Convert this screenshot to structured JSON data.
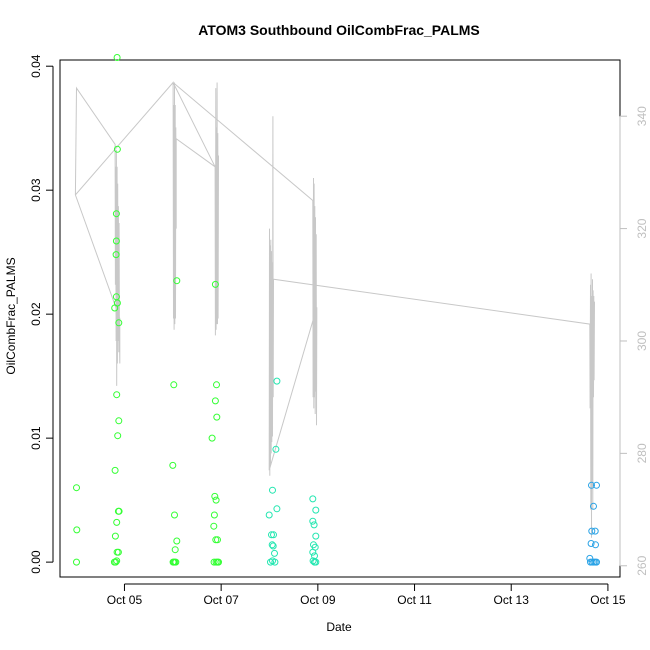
{
  "chart_data": {
    "type": "scatter",
    "title": "ATOM3 Southbound OilCombFrac_PALMS",
    "xlabel": "Date",
    "ylabel": "OilCombFrac_PALMS",
    "xlim": [
      "2016-10-03T16:00",
      "2016-10-15T06:00"
    ],
    "ylim": [
      -0.0012,
      0.0405
    ],
    "ylim_right": [
      258,
      350
    ],
    "x_ticks": [
      "Oct 05",
      "Oct 07",
      "Oct 09",
      "Oct 11",
      "Oct 13",
      "Oct 15"
    ],
    "x_tick_dates": [
      "2016-10-05",
      "2016-10-07",
      "2016-10-09",
      "2016-10-11",
      "2016-10-13",
      "2016-10-15"
    ],
    "y_ticks": [
      "0.00",
      "0.01",
      "0.02",
      "0.03",
      "0.04"
    ],
    "y_tick_values": [
      0.0,
      0.01,
      0.02,
      0.03,
      0.04
    ],
    "y_ticks_right": [
      "260",
      "280",
      "300",
      "320",
      "340"
    ],
    "y_tick_values_right": [
      260,
      280,
      300,
      320,
      340
    ],
    "grid": false,
    "legend": "none",
    "colors": {
      "green": "#33ff33",
      "teal": "#22e6b0",
      "blue": "#2aa3e6",
      "line": "#c8c8c8",
      "right_axis": "#bfbfbf"
    },
    "series": [
      {
        "marker": "open-circle",
        "color": "#33ff33",
        "points": [
          [
            "2016-10-04T00:10",
            0.006
          ],
          [
            "2016-10-04T00:20",
            0.0026
          ],
          [
            "2016-10-04T00:10",
            0.0
          ],
          [
            "2016-10-04T19:10",
            0.0205
          ],
          [
            "2016-10-04T19:20",
            0.0074
          ],
          [
            "2016-10-04T19:30",
            0.0021
          ],
          [
            "2016-10-04T19:00",
            0.0
          ],
          [
            "2016-10-04T19:40",
            0.0
          ],
          [
            "2016-10-04T20:20",
            0.0407
          ],
          [
            "2016-10-04T20:30",
            0.0333
          ],
          [
            "2016-10-04T20:00",
            0.0281
          ],
          [
            "2016-10-04T20:00",
            0.0259
          ],
          [
            "2016-10-04T19:50",
            0.0248
          ],
          [
            "2016-10-04T20:00",
            0.0214
          ],
          [
            "2016-10-04T20:30",
            0.0209
          ],
          [
            "2016-10-04T21:10",
            0.0193
          ],
          [
            "2016-10-04T20:10",
            0.0135
          ],
          [
            "2016-10-04T21:10",
            0.0114
          ],
          [
            "2016-10-04T20:40",
            0.0102
          ],
          [
            "2016-10-04T20:10",
            0.0032
          ],
          [
            "2016-10-04T21:00",
            0.0041
          ],
          [
            "2016-10-04T21:20",
            0.0041
          ],
          [
            "2016-10-04T20:20",
            0.0008
          ],
          [
            "2016-10-04T21:00",
            0.0008
          ],
          [
            "2016-10-04T20:10",
            0.0001
          ],
          [
            "2016-10-06T00:30",
            0.0143
          ],
          [
            "2016-10-06T00:00",
            0.0078
          ],
          [
            "2016-10-06T00:50",
            0.0038
          ],
          [
            "2016-10-06T02:00",
            0.0017
          ],
          [
            "2016-10-06T01:10",
            0.001
          ],
          [
            "2016-10-06T00:10",
            0.0
          ],
          [
            "2016-10-06T00:30",
            0.0
          ],
          [
            "2016-10-06T01:00",
            0.0
          ],
          [
            "2016-10-06T01:30",
            0.0
          ],
          [
            "2016-10-06T02:00",
            0.0227
          ],
          [
            "2016-10-06T21:10",
            0.0224
          ],
          [
            "2016-10-06T21:40",
            0.0143
          ],
          [
            "2016-10-06T21:10",
            0.013
          ],
          [
            "2016-10-06T21:50",
            0.0117
          ],
          [
            "2016-10-06T19:30",
            0.01
          ],
          [
            "2016-10-06T20:50",
            0.0053
          ],
          [
            "2016-10-06T21:30",
            0.005
          ],
          [
            "2016-10-06T20:40",
            0.0038
          ],
          [
            "2016-10-06T20:20",
            0.0029
          ],
          [
            "2016-10-06T21:20",
            0.0018
          ],
          [
            "2016-10-06T22:10",
            0.0018
          ],
          [
            "2016-10-06T20:30",
            0.0
          ],
          [
            "2016-10-06T21:30",
            0.0
          ],
          [
            "2016-10-06T22:10",
            0.0
          ],
          [
            "2016-10-06T22:40",
            0.0
          ]
        ]
      },
      {
        "marker": "open-circle",
        "color": "#22e6b0",
        "points": [
          [
            "2016-10-08T03:40",
            0.0146
          ],
          [
            "2016-10-08T03:10",
            0.0091
          ],
          [
            "2016-10-08T01:30",
            0.0058
          ],
          [
            "2016-10-08T03:40",
            0.0043
          ],
          [
            "2016-10-07T23:50",
            0.0038
          ],
          [
            "2016-10-08T01:00",
            0.0022
          ],
          [
            "2016-10-08T02:00",
            0.0022
          ],
          [
            "2016-10-08T01:20",
            0.0014
          ],
          [
            "2016-10-08T01:50",
            0.0013
          ],
          [
            "2016-10-08T02:30",
            0.0007
          ],
          [
            "2016-10-08T01:30",
            0.0001
          ],
          [
            "2016-10-08T00:30",
            0.0
          ],
          [
            "2016-10-08T02:40",
            0.0
          ],
          [
            "2016-10-08T21:30",
            0.0051
          ],
          [
            "2016-10-08T23:00",
            0.0042
          ],
          [
            "2016-10-08T21:30",
            0.0033
          ],
          [
            "2016-10-08T22:10",
            0.003
          ],
          [
            "2016-10-08T23:00",
            0.0021
          ],
          [
            "2016-10-08T21:50",
            0.0014
          ],
          [
            "2016-10-08T22:40",
            0.0012
          ],
          [
            "2016-10-08T21:30",
            0.0008
          ],
          [
            "2016-10-08T22:20",
            0.0005
          ],
          [
            "2016-10-08T21:40",
            0.0001
          ],
          [
            "2016-10-08T22:20",
            0.0
          ],
          [
            "2016-10-08T23:00",
            0.0
          ]
        ]
      },
      {
        "marker": "open-circle",
        "color": "#2aa3e6",
        "points": [
          [
            "2016-10-14T15:50",
            0.0062
          ],
          [
            "2016-10-14T18:20",
            0.0062
          ],
          [
            "2016-10-14T16:50",
            0.0045
          ],
          [
            "2016-10-14T16:00",
            0.0025
          ],
          [
            "2016-10-14T17:40",
            0.0025
          ],
          [
            "2016-10-14T15:40",
            0.0015
          ],
          [
            "2016-10-14T17:50",
            0.0014
          ],
          [
            "2016-10-14T15:00",
            0.0003
          ],
          [
            "2016-10-14T15:20",
            0.0
          ],
          [
            "2016-10-14T16:10",
            0.0
          ],
          [
            "2016-10-14T17:00",
            0.0
          ],
          [
            "2016-10-14T17:40",
            0.0
          ],
          [
            "2016-10-14T18:20",
            0.0
          ]
        ]
      },
      {
        "type": "line",
        "axis": "right",
        "color": "#c8c8c8",
        "points": [
          [
            "2016-10-03T23:40",
            326.0
          ],
          [
            "2016-10-04T00:10",
            345.0
          ],
          [
            "2016-10-04T19:20",
            335.0
          ],
          [
            "2016-10-04T19:30",
            310.0
          ],
          [
            "2016-10-04T19:40",
            331.0
          ],
          [
            "2016-10-04T19:50",
            300.0
          ],
          [
            "2016-10-04T20:00",
            334.0
          ],
          [
            "2016-10-04T20:10",
            292.0
          ],
          [
            "2016-10-04T20:20",
            331.0
          ],
          [
            "2016-10-04T20:30",
            296.0
          ],
          [
            "2016-10-04T20:40",
            328.0
          ],
          [
            "2016-10-04T20:50",
            300.0
          ],
          [
            "2016-10-04T21:00",
            324.0
          ],
          [
            "2016-10-04T21:10",
            298.0
          ],
          [
            "2016-10-04T21:20",
            321.0
          ],
          [
            "2016-10-04T21:30",
            303.0
          ],
          [
            "2016-10-04T21:40",
            296.0
          ],
          [
            "2016-10-04T21:40",
            304.0
          ],
          [
            "2016-10-03T23:40",
            326.0
          ],
          [
            "2016-10-06T00:10",
            346.0
          ],
          [
            "2016-10-06T00:20",
            304.0
          ],
          [
            "2016-10-06T00:30",
            342.0
          ],
          [
            "2016-10-06T00:40",
            302.0
          ],
          [
            "2016-10-06T00:50",
            346.0
          ],
          [
            "2016-10-06T01:00",
            303.0
          ],
          [
            "2016-10-06T01:10",
            342.0
          ],
          [
            "2016-10-06T01:20",
            304.0
          ],
          [
            "2016-10-06T01:30",
            338.0
          ],
          [
            "2016-10-06T01:40",
            320.0
          ],
          [
            "2016-10-06T01:40",
            336.0
          ],
          [
            "2016-10-06T21:00",
            331.0
          ],
          [
            "2016-10-06T21:10",
            301.0
          ],
          [
            "2016-10-06T21:20",
            345.0
          ],
          [
            "2016-10-06T21:30",
            302.0
          ],
          [
            "2016-10-06T21:40",
            338.0
          ],
          [
            "2016-10-06T21:50",
            303.0
          ],
          [
            "2016-10-06T22:00",
            346.0
          ],
          [
            "2016-10-06T22:10",
            303.0
          ],
          [
            "2016-10-06T22:20",
            337.0
          ],
          [
            "2016-10-06T22:30",
            304.0
          ],
          [
            "2016-10-06T22:40",
            333.0
          ],
          [
            "2016-10-06T21:00",
            331.0
          ],
          [
            "2016-10-06T00:10",
            346.0
          ],
          [
            "2016-10-08T21:30",
            325.0
          ],
          [
            "2016-10-08T21:40",
            290.0
          ],
          [
            "2016-10-08T21:50",
            329.0
          ],
          [
            "2016-10-08T22:00",
            288.0
          ],
          [
            "2016-10-08T22:10",
            328.0
          ],
          [
            "2016-10-08T22:20",
            290.0
          ],
          [
            "2016-10-08T22:30",
            324.0
          ],
          [
            "2016-10-08T22:40",
            287.0
          ],
          [
            "2016-10-08T22:50",
            322.0
          ],
          [
            "2016-10-08T23:00",
            291.0
          ],
          [
            "2016-10-08T23:10",
            319.0
          ],
          [
            "2016-10-08T23:20",
            285.0
          ],
          [
            "2016-10-08T23:30",
            304.0
          ],
          [
            "2016-10-08T23:30",
            306.0
          ],
          [
            "2016-10-07T23:50",
            277.0
          ],
          [
            "2016-10-08T00:00",
            320.0
          ],
          [
            "2016-10-08T00:10",
            276.0
          ],
          [
            "2016-10-08T00:20",
            317.0
          ],
          [
            "2016-10-08T00:30",
            278.0
          ],
          [
            "2016-10-08T00:40",
            318.0
          ],
          [
            "2016-10-08T00:50",
            280.0
          ],
          [
            "2016-10-08T01:00",
            316.0
          ],
          [
            "2016-10-08T01:10",
            282.0
          ],
          [
            "2016-10-08T01:20",
            314.0
          ],
          [
            "2016-10-08T01:30",
            283.0
          ],
          [
            "2016-10-08T01:40",
            340.0
          ],
          [
            "2016-10-08T01:50",
            290.0
          ],
          [
            "2016-10-08T02:00",
            311.0
          ],
          [
            "2016-10-14T15:00",
            303.0
          ],
          [
            "2016-10-14T15:10",
            288.0
          ],
          [
            "2016-10-14T15:20",
            310.0
          ],
          [
            "2016-10-14T15:30",
            270.0
          ],
          [
            "2016-10-14T15:40",
            312.0
          ],
          [
            "2016-10-14T15:50",
            265.0
          ],
          [
            "2016-10-14T16:00",
            308.0
          ],
          [
            "2016-10-14T16:10",
            274.0
          ],
          [
            "2016-10-14T16:20",
            311.0
          ],
          [
            "2016-10-14T16:30",
            270.0
          ],
          [
            "2016-10-14T16:40",
            309.0
          ],
          [
            "2016-10-14T16:50",
            290.0
          ],
          [
            "2016-10-14T17:00",
            308.0
          ],
          [
            "2016-10-14T17:10",
            293.0
          ],
          [
            "2016-10-14T17:20",
            307.0
          ]
        ]
      }
    ]
  }
}
